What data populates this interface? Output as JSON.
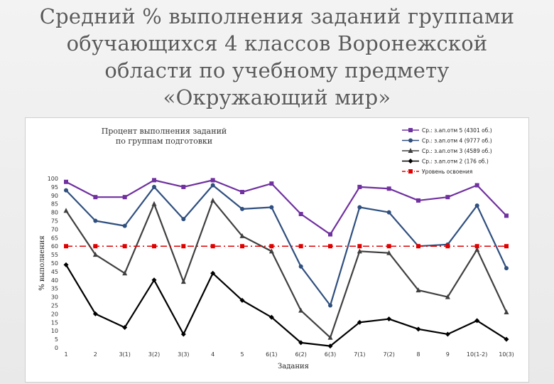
{
  "slide": {
    "title": "Средний % выполнения заданий группами обучающихся 4 классов Воронежской области по учебному предмету «Окружающий мир»"
  },
  "chart_data": {
    "type": "line",
    "title_lines": [
      "Процент выполнения заданий",
      "по группам подготовки"
    ],
    "xlabel": "Задания",
    "ylabel": "% выполнения",
    "ylim": [
      0,
      100
    ],
    "y_ticks": [
      0,
      5,
      10,
      15,
      20,
      25,
      30,
      35,
      40,
      45,
      50,
      55,
      60,
      65,
      70,
      75,
      80,
      85,
      90,
      95,
      100
    ],
    "categories": [
      "1",
      "2",
      "3(1)",
      "3(2)",
      "3(3)",
      "4",
      "5",
      "6(1)",
      "6(2)",
      "6(3)",
      "7(1)",
      "7(2)",
      "8",
      "9",
      "10(1-2)",
      "10(3)"
    ],
    "grid": false,
    "legend_position": "top-right",
    "series": [
      {
        "name": "Ср.: з.ап.отм 5 (4301 об.)",
        "color": "#7030a0",
        "marker": "square",
        "dash": "solid",
        "values": [
          98,
          89,
          89,
          99,
          95,
          99,
          92,
          97,
          79,
          67,
          95,
          94,
          87,
          89,
          96,
          78
        ]
      },
      {
        "name": "Ср.: з.ап.отм 4 (9777 об.)",
        "color": "#2f4f7f",
        "marker": "circle",
        "dash": "solid",
        "values": [
          93,
          75,
          72,
          95,
          76,
          96,
          82,
          83,
          48,
          25,
          83,
          80,
          60,
          61,
          84,
          47
        ]
      },
      {
        "name": "Ср.: з.ап.отм 3 (4589 об.)",
        "color": "#404040",
        "marker": "triangle",
        "dash": "solid",
        "values": [
          81,
          55,
          44,
          85,
          39,
          87,
          66,
          57,
          22,
          6,
          57,
          56,
          34,
          30,
          58,
          21
        ]
      },
      {
        "name": "Ср.: з.ап.отм 2 (176 об.)",
        "color": "#000000",
        "marker": "diamond",
        "dash": "solid",
        "values": [
          49,
          20,
          12,
          40,
          8,
          44,
          28,
          18,
          3,
          1,
          15,
          17,
          11,
          8,
          16,
          5
        ]
      },
      {
        "name": "Уровень освоения",
        "color": "#e00000",
        "marker": "square",
        "dash": "dashdot",
        "values": [
          60,
          60,
          60,
          60,
          60,
          60,
          60,
          60,
          60,
          60,
          60,
          60,
          60,
          60,
          60,
          60
        ]
      }
    ]
  }
}
